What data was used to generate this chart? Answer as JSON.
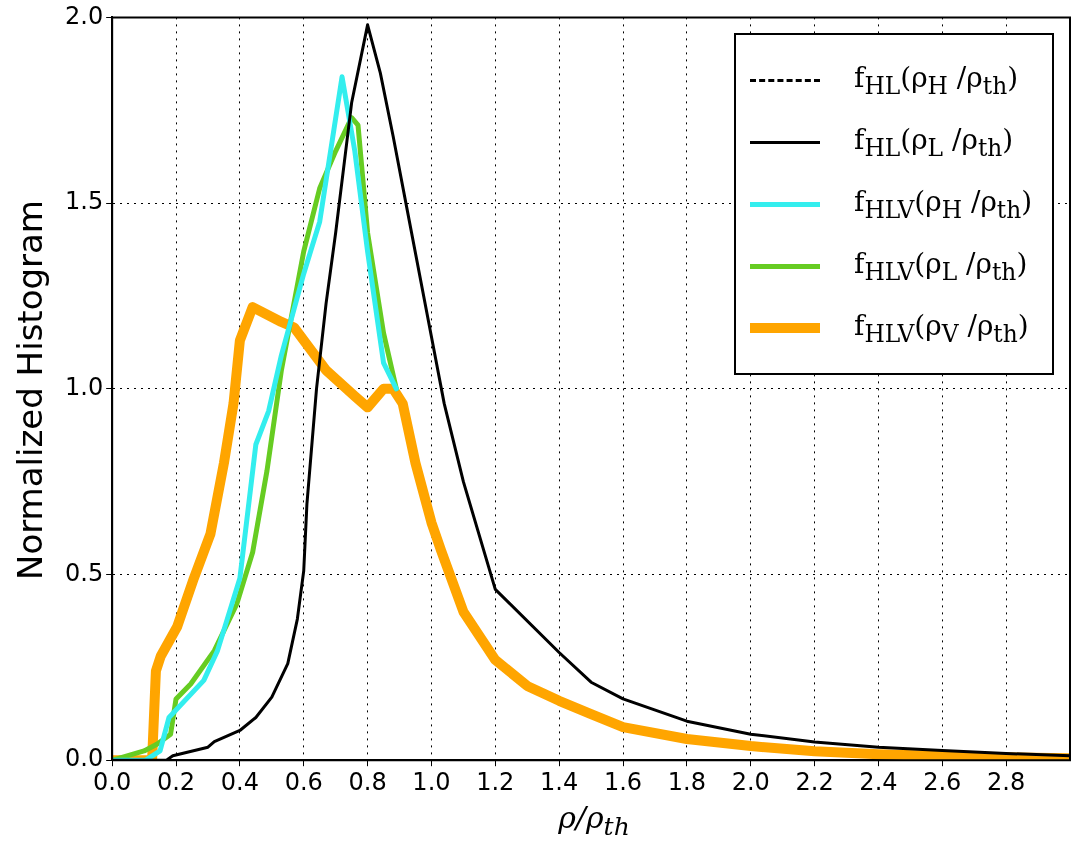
{
  "chart_data": {
    "type": "line",
    "xlabel": "ρ/ρ$_{th}$",
    "ylabel": "Normalized Histogram",
    "xlim": [
      0,
      3
    ],
    "ylim": [
      0,
      2
    ],
    "xticks": [
      {
        "value": 0,
        "label": "0.0"
      },
      {
        "value": 0.2,
        "label": "0.2"
      },
      {
        "value": 0.4,
        "label": "0.4"
      },
      {
        "value": 0.6,
        "label": "0.6"
      },
      {
        "value": 0.8,
        "label": "0.8"
      },
      {
        "value": 1,
        "label": "1.0"
      },
      {
        "value": 1.2,
        "label": "1.2"
      },
      {
        "value": 1.4,
        "label": "1.4"
      },
      {
        "value": 1.6,
        "label": "1.6"
      },
      {
        "value": 1.8,
        "label": "1.8"
      },
      {
        "value": 2,
        "label": "2.0"
      },
      {
        "value": 2.2,
        "label": "2.2"
      },
      {
        "value": 2.4,
        "label": "2.4"
      },
      {
        "value": 2.6,
        "label": "2.6"
      },
      {
        "value": 2.8,
        "label": "2.8"
      }
    ],
    "yticks": [
      {
        "value": 0,
        "label": "0.0"
      },
      {
        "value": 0.5,
        "label": "0.5"
      },
      {
        "value": 1,
        "label": "1.0"
      },
      {
        "value": 1.5,
        "label": "1.5"
      },
      {
        "value": 2,
        "label": "2.0"
      }
    ],
    "grid": true,
    "legend": "top right",
    "marker": "none",
    "series": [
      {
        "name": "f$_{HL}$(ρ$_{H}$ /ρ$_{th}$)",
        "color": "#000000",
        "line_style": "dashed"
      },
      {
        "name": "f$_{HL}$(ρ$_{L}$ /ρ$_{th}$)",
        "color": "#000000",
        "line_style": "solid",
        "x": [
          0,
          0.17,
          0.19,
          0.3,
          0.32,
          0.4,
          0.45,
          0.5,
          0.55,
          0.58,
          0.6,
          0.61,
          0.64,
          0.67,
          0.7,
          0.75,
          0.8,
          0.84,
          0.88,
          0.92,
          1.0,
          1.04,
          1.1,
          1.2,
          1.4,
          1.5,
          1.6,
          1.8,
          2.0,
          2.2,
          2.4,
          2.6,
          2.8,
          3.0
        ],
        "values": [
          0,
          0,
          0.012,
          0.035,
          0.05,
          0.08,
          0.115,
          0.17,
          0.26,
          0.38,
          0.51,
          0.69,
          1.0,
          1.23,
          1.42,
          1.77,
          1.98,
          1.85,
          1.68,
          1.5,
          1.14,
          0.96,
          0.75,
          0.46,
          0.29,
          0.21,
          0.165,
          0.105,
          0.07,
          0.049,
          0.035,
          0.026,
          0.018,
          0.012
        ]
      },
      {
        "name": "f$_{HLV}$(ρ$_{H}$ /ρ$_{th}$)",
        "color": "#33eeee",
        "line_style": "solid",
        "x": [
          0,
          0.105,
          0.15,
          0.178,
          0.287,
          0.33,
          0.4,
          0.45,
          0.49,
          0.53,
          0.6,
          0.65,
          0.72,
          0.76,
          0.8,
          0.85,
          0.89
        ],
        "values": [
          0,
          0,
          0.025,
          0.115,
          0.215,
          0.295,
          0.49,
          0.85,
          0.94,
          1.09,
          1.31,
          1.45,
          1.84,
          1.64,
          1.37,
          1.07,
          1.0
        ]
      },
      {
        "name": "f$_{HLV}$(ρ$_{L}$ /ρ$_{th}$)",
        "color": "#66cc22",
        "line_style": "solid",
        "x": [
          0,
          0.1,
          0.14,
          0.183,
          0.2,
          0.246,
          0.32,
          0.39,
          0.44,
          0.485,
          0.53,
          0.6,
          0.65,
          0.7,
          0.75,
          0.77,
          0.8,
          0.85,
          0.89
        ],
        "values": [
          0,
          0.025,
          0.043,
          0.07,
          0.165,
          0.205,
          0.295,
          0.42,
          0.56,
          0.78,
          1.05,
          1.37,
          1.54,
          1.64,
          1.73,
          1.71,
          1.42,
          1.15,
          1.0
        ]
      },
      {
        "name": "f$_{HLV}$(ρ$_{V}$ /ρ$_{th}$)",
        "color": "#ffa500",
        "line_style": "solid",
        "x": [
          0,
          0.125,
          0.137,
          0.152,
          0.204,
          0.256,
          0.308,
          0.35,
          0.38,
          0.4,
          0.44,
          0.53,
          0.57,
          0.67,
          0.76,
          0.8,
          0.85,
          0.88,
          0.91,
          0.95,
          1.0,
          1.03,
          1.1,
          1.2,
          1.3,
          1.4,
          1.5,
          1.6,
          1.8,
          2.0,
          2.2,
          2.4,
          2.6,
          2.8,
          3.0
        ],
        "values": [
          0,
          0,
          0.24,
          0.28,
          0.36,
          0.49,
          0.61,
          0.8,
          0.96,
          1.13,
          1.22,
          1.18,
          1.165,
          1.05,
          0.98,
          0.95,
          1.0,
          1.0,
          0.96,
          0.8,
          0.64,
          0.565,
          0.4,
          0.27,
          0.2,
          0.16,
          0.124,
          0.089,
          0.057,
          0.038,
          0.024,
          0.016,
          0.011,
          0.008,
          0.005
        ]
      }
    ]
  }
}
